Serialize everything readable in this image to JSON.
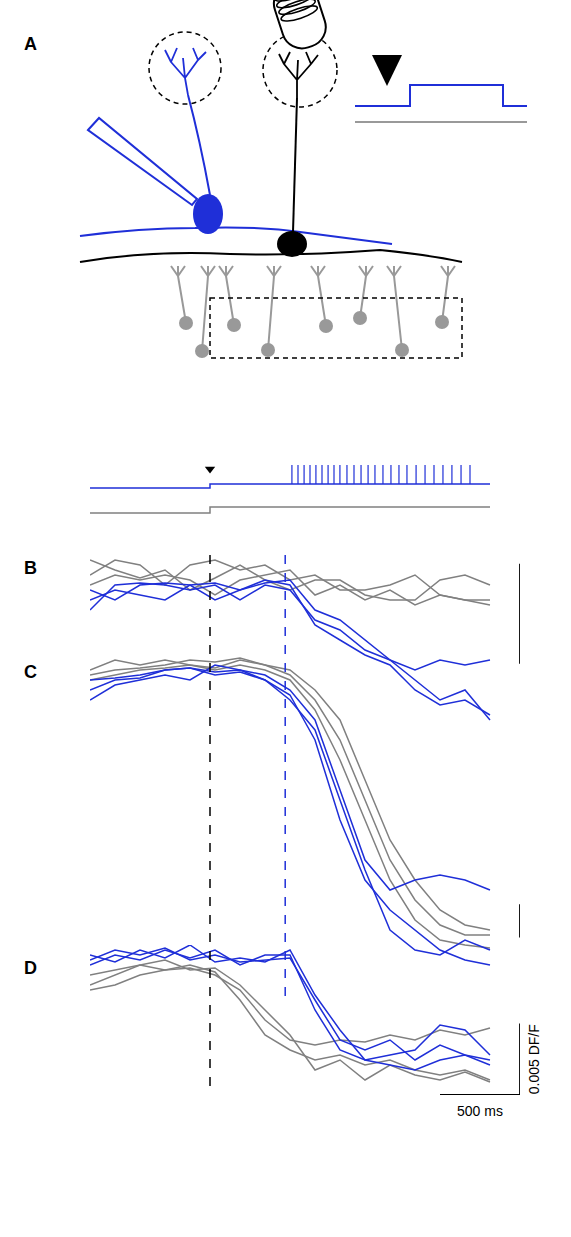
{
  "diagram": {
    "label": "A"
  },
  "chart_data": [
    {
      "type": "line",
      "tick_labels": false,
      "xlim": [
        0,
        2687.5
      ],
      "ylim": [
        0,
        70
      ],
      "stimulus_onset": 750,
      "onset_lines": [
        {
          "x": 750,
          "color": "#000000",
          "line_style": "dash"
        },
        {
          "x": 1220,
          "color": "#1f2fd8",
          "line_style": "dash"
        }
      ],
      "series": [
        {
          "color": "#1f2fd8",
          "x": [
            0,
            750,
            750,
            2500
          ],
          "values": [
            37,
            37,
            41,
            41
          ],
          "spike_times": [
            1262,
            1300,
            1338,
            1375,
            1412,
            1450,
            1488,
            1525,
            1562,
            1606,
            1650,
            1694,
            1738,
            1781,
            1831,
            1881,
            1931,
            1981,
            2038,
            2094,
            2150,
            2206,
            2262,
            2319,
            2375
          ],
          "spike_peak": 60
        },
        {
          "color": "#808080",
          "x": [
            0,
            750,
            750,
            2500
          ],
          "values": [
            12,
            12,
            18,
            18
          ]
        }
      ]
    },
    {
      "type": "line",
      "label": "B",
      "tick_labels": false,
      "xlim": [
        0,
        2687.5
      ],
      "ylim": [
        -0.00155,
        0.0002
      ],
      "x": [
        0,
        156.25,
        312.5,
        468.75,
        625,
        781.25,
        937.5,
        1093.75,
        1250,
        1406.25,
        1562.5,
        1718.75,
        1875,
        2031.25,
        2187.5,
        2343.75,
        2500
      ],
      "scale_bar": {
        "value": 0.001
      },
      "series": [
        {
          "color": "#808080",
          "values": [
            0,
            0.00015,
            0.0001,
            -0.0001,
            0.0001,
            0.00015,
            5e-05,
            0.0001,
            -5e-05,
            0,
            -0.00015,
            -0.00015,
            -0.0001,
            0,
            -0.0002,
            -0.00025,
            -0.00025
          ]
        },
        {
          "color": "#808080",
          "values": [
            0.00015,
            5e-05,
            -3e-05,
            5e-05,
            -0.00015,
            -3e-05,
            0.0001,
            -5e-05,
            -0.00015,
            -5e-05,
            -5e-05,
            -0.0002,
            -0.00025,
            -0.00025,
            -5e-05,
            0,
            -0.0001
          ]
        },
        {
          "color": "#808080",
          "values": [
            -0.0001,
            0,
            -5e-05,
            0,
            -5e-05,
            -0.0002,
            -5e-05,
            0,
            5e-05,
            -0.0002,
            -0.0001,
            -0.00025,
            -0.00015,
            -0.0003,
            -0.0002,
            -0.00025,
            -0.0003
          ]
        },
        {
          "color": "#1f2fd8",
          "values": [
            -0.00015,
            -0.00025,
            -0.0001,
            -8e-05,
            -0.0001,
            -0.00025,
            -0.00015,
            -8e-05,
            -5e-05,
            -0.00035,
            -0.00045,
            -0.00065,
            -0.00085,
            -0.00105,
            -0.00125,
            -0.00115,
            -0.00145
          ]
        },
        {
          "color": "#1f2fd8",
          "values": [
            -0.00035,
            -0.0001,
            -8e-05,
            -0.0001,
            -0.00015,
            -0.0001,
            -0.00025,
            -0.0001,
            -0.00015,
            -0.00045,
            -0.00055,
            -0.00075,
            -0.00085,
            -0.00095,
            -0.00085,
            -0.0009,
            -0.00085
          ]
        },
        {
          "color": "#1f2fd8",
          "values": [
            -0.00025,
            -0.00015,
            -0.0002,
            -0.00025,
            -0.0001,
            -8e-05,
            -0.00015,
            -5e-05,
            -0.0001,
            -0.0005,
            -0.00065,
            -0.0008,
            -0.0009,
            -0.00115,
            -0.0013,
            -0.00125,
            -0.0014
          ]
        }
      ]
    },
    {
      "type": "line",
      "label": "C",
      "tick_labels": false,
      "xlim": [
        0,
        2687.5
      ],
      "ylim": [
        -0.0195,
        0.0015
      ],
      "x": [
        0,
        156.25,
        312.5,
        468.75,
        625,
        781.25,
        937.5,
        1093.75,
        1250,
        1406.25,
        1562.5,
        1718.75,
        1875,
        2031.25,
        2187.5,
        2343.75,
        2500
      ],
      "scale_bar": {
        "value": 0.002
      },
      "series": [
        {
          "color": "#808080",
          "values": [
            -0.0003,
            0.0003,
            0,
            0.0003,
            0,
            -0.00018,
            0.0003,
            0,
            -0.0003,
            -0.0015,
            -0.0033,
            -0.0069,
            -0.0105,
            -0.0129,
            -0.0147,
            -0.0156,
            -0.0159
          ]
        },
        {
          "color": "#808080",
          "values": [
            -0.0006,
            -0.0003,
            -0.00018,
            0,
            0.0003,
            0.00018,
            0.00042,
            0,
            -0.0006,
            -0.0021,
            -0.0045,
            -0.0081,
            -0.0117,
            -0.0141,
            -0.0156,
            -0.0162,
            -0.0162
          ]
        },
        {
          "color": "#808080",
          "values": [
            -0.0009,
            -0.0006,
            -0.0003,
            -0.00018,
            0,
            -0.0003,
            0,
            -0.0003,
            -0.0009,
            -0.0027,
            -0.0057,
            -0.0093,
            -0.0129,
            -0.0153,
            -0.0165,
            -0.0168,
            -0.01698
          ]
        },
        {
          "color": "#1f2fd8",
          "values": [
            -0.0015,
            -0.0009,
            -0.00078,
            -0.0003,
            -0.00018,
            -0.00042,
            -0.0003,
            -0.0006,
            -0.0015,
            -0.0033,
            -0.0075,
            -0.0117,
            -0.0135,
            -0.0129,
            -0.0126,
            -0.0129,
            -0.0135
          ]
        },
        {
          "color": "#1f2fd8",
          "values": [
            -0.0021,
            -0.0012,
            -0.0009,
            -0.0006,
            -0.0009,
            0,
            -0.0003,
            -0.0009,
            -0.0018,
            -0.0045,
            -0.0093,
            -0.0129,
            -0.0147,
            -0.0159,
            -0.0171,
            -0.0177,
            -0.018
          ]
        },
        {
          "color": "#1f2fd8",
          "values": [
            -0.0009,
            -0.00078,
            -0.0006,
            -0.0003,
            -0.00018,
            -0.0006,
            -0.00042,
            -0.0009,
            -0.0021,
            -0.0039,
            -0.0081,
            -0.0123,
            -0.0159,
            -0.0171,
            -0.0174,
            -0.0165,
            -0.0171
          ]
        }
      ]
    },
    {
      "type": "line",
      "label": "D",
      "tick_labels": false,
      "xlim": [
        0,
        2687.5
      ],
      "ylim": [
        -0.0091,
        0.0014
      ],
      "x": [
        0,
        156.25,
        312.5,
        468.75,
        625,
        781.25,
        937.5,
        1093.75,
        1250,
        1406.25,
        1562.5,
        1718.75,
        1875,
        2031.25,
        2187.5,
        2343.75,
        2500
      ],
      "scale_bar": {
        "value": 0.005,
        "label": "0.005 DF/F"
      },
      "time_bar": {
        "value": 500,
        "label": "500 ms"
      },
      "series": [
        {
          "color": "#808080",
          "values": [
            -0.0014,
            -0.0007,
            0,
            -0.00035,
            -0.00021,
            -0.0007,
            -0.00175,
            -0.00385,
            -0.00525,
            -0.0056,
            -0.00525,
            -0.00539,
            -0.0049,
            -0.00525,
            -0.00455,
            -0.0049,
            -0.00441
          ]
        },
        {
          "color": "#808080",
          "values": [
            -0.00175,
            -0.0014,
            -0.0007,
            -0.00035,
            0,
            -0.00049,
            -0.00245,
            -0.0049,
            -0.00595,
            -0.00665,
            -0.0063,
            -0.007,
            -0.00665,
            -0.00735,
            -0.0077,
            -0.00735,
            -0.00805
          ]
        },
        {
          "color": "#808080",
          "values": [
            -0.0007,
            -0.00035,
            0,
            0.00035,
            -0.00035,
            -0.00021,
            -0.0014,
            -0.00315,
            -0.0049,
            -0.00735,
            -0.00665,
            -0.00805,
            -0.007,
            -0.0077,
            -0.00805,
            -0.00749,
            -0.00819
          ]
        },
        {
          "color": "#1f2fd8",
          "values": [
            0.00035,
            0.00105,
            0.0007,
            0.00119,
            0.00035,
            0.0007,
            0.00021,
            0.00035,
            0.00049,
            -0.00245,
            -0.00525,
            -0.00595,
            -0.00525,
            -0.00665,
            -0.0056,
            -0.0063,
            -0.00665
          ]
        },
        {
          "color": "#1f2fd8",
          "values": [
            0.0007,
            0.00021,
            0.00105,
            0.00049,
            0.0014,
            0.00021,
            0.00049,
            0.00021,
            0.00105,
            -0.0021,
            -0.00455,
            -0.00665,
            -0.007,
            -0.00735,
            -0.00665,
            -0.0063,
            -0.007
          ]
        },
        {
          "color": "#1f2fd8",
          "values": [
            0,
            0.0007,
            0.00035,
            0.00105,
            0.00049,
            0.00105,
            0,
            0.0007,
            0.0007,
            -0.00315,
            -0.00595,
            -0.00665,
            -0.0063,
            -0.00595,
            -0.0042,
            -0.00455,
            -0.0063
          ]
        }
      ]
    }
  ]
}
